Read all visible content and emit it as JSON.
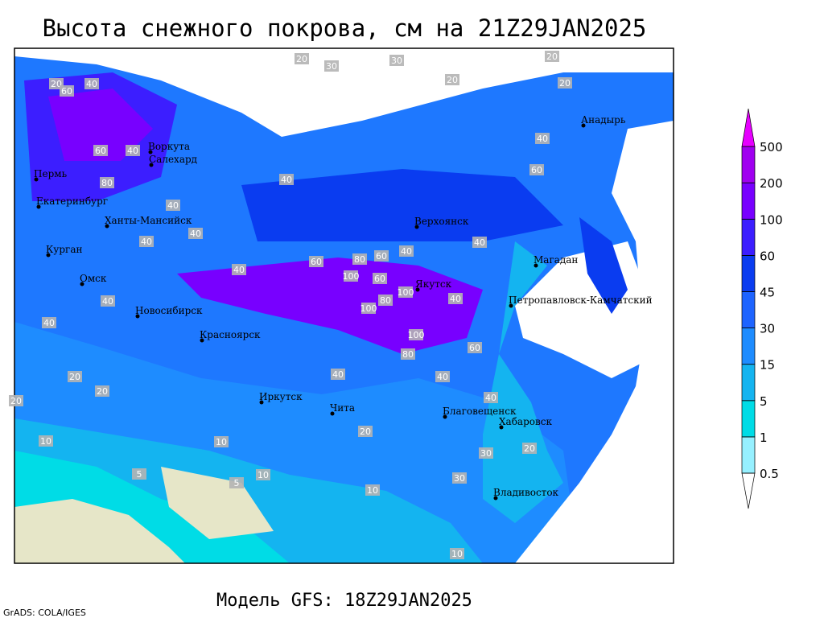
{
  "title": "Высота снежного покрова, см на 21Z29JAN2025",
  "subtitle": "Модель GFS: 18Z29JAN2025",
  "credit": "GrADS: COLA/IGES",
  "cities": [
    "Воркута",
    "Салехард",
    "Пермь",
    "Екатеринбург",
    "Ханты-Мансийск",
    "Курган",
    "Омск",
    "Новосибирск",
    "Красноярск",
    "Иркутск",
    "Чита",
    "Верхоянск",
    "Якутск",
    "Магадан",
    "Анадырь",
    "Петропавловск-Камчатский",
    "Благовещенск",
    "Хабаровск",
    "Владивосток"
  ],
  "contour_labels": [
    20,
    30,
    30,
    20,
    20,
    20,
    20,
    60,
    40,
    60,
    40,
    80,
    40,
    40,
    40,
    40,
    60,
    40,
    60,
    40,
    80,
    100,
    60,
    80,
    100,
    100,
    100,
    80,
    60,
    40,
    40,
    40,
    60,
    40,
    40,
    30,
    20,
    20,
    10,
    10,
    20,
    10,
    5,
    5,
    10,
    20,
    30,
    20,
    10,
    40,
    40,
    40
  ],
  "colorbar": {
    "levels": [
      0.5,
      1,
      5,
      15,
      30,
      45,
      60,
      100,
      200,
      500
    ],
    "colors": [
      "#ffffff",
      "#96f0ff",
      "#00dce6",
      "#14b4f0",
      "#1e8cff",
      "#1e64ff",
      "#0a3cf0",
      "#3c1eff",
      "#7800ff",
      "#a000f0",
      "#e600ff"
    ]
  }
}
